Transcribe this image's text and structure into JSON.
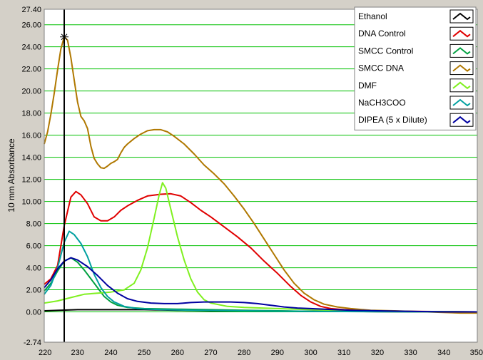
{
  "chart_data": {
    "type": "line",
    "title": "",
    "xlabel": "",
    "ylabel": "10 mm Absorbance",
    "xlim": [
      220,
      350
    ],
    "ylim": [
      -2.74,
      27.4
    ],
    "x_ticks": [
      220,
      230,
      240,
      250,
      260,
      270,
      280,
      290,
      300,
      310,
      320,
      330,
      340,
      350
    ],
    "y_ticks": [
      27.4,
      26.0,
      24.0,
      22.0,
      20.0,
      18.0,
      16.0,
      14.0,
      12.0,
      10.0,
      8.0,
      6.0,
      4.0,
      2.0,
      0.0,
      -2.74
    ],
    "y_tick_labels": [
      "27.40",
      "26.00",
      "24.00",
      "22.00",
      "20.00",
      "18.00",
      "16.00",
      "14.00",
      "12.00",
      "10.00",
      "8.00",
      "6.00",
      "4.00",
      "2.00",
      "0.00",
      "-2.74"
    ],
    "grid": true,
    "grid_color": "#00c000",
    "plot_background": "#ffffff",
    "legend_position": "top-right",
    "cursor": {
      "x": 226,
      "y": 24.9
    },
    "series": [
      {
        "name": "Ethanol",
        "color": "#000000",
        "points": [
          [
            220,
            0.1
          ],
          [
            230,
            0.2
          ],
          [
            240,
            0.2
          ],
          [
            250,
            0.2
          ],
          [
            260,
            0.15
          ],
          [
            270,
            0.1
          ],
          [
            280,
            0.1
          ],
          [
            290,
            0.08
          ],
          [
            300,
            0.05
          ],
          [
            320,
            0.03
          ],
          [
            350,
            0.0
          ]
        ]
      },
      {
        "name": "DNA Control",
        "color": "#e00000",
        "points": [
          [
            220,
            2.5
          ],
          [
            222,
            3.0
          ],
          [
            224,
            4.2
          ],
          [
            226,
            7.8
          ],
          [
            228,
            10.4
          ],
          [
            229.5,
            10.9
          ],
          [
            231,
            10.6
          ],
          [
            233,
            9.8
          ],
          [
            235,
            8.6
          ],
          [
            237,
            8.25
          ],
          [
            239,
            8.25
          ],
          [
            241,
            8.6
          ],
          [
            243,
            9.2
          ],
          [
            245,
            9.6
          ],
          [
            248,
            10.1
          ],
          [
            251,
            10.5
          ],
          [
            255,
            10.65
          ],
          [
            258,
            10.7
          ],
          [
            261,
            10.5
          ],
          [
            264,
            9.9
          ],
          [
            267,
            9.2
          ],
          [
            270,
            8.6
          ],
          [
            274,
            7.7
          ],
          [
            278,
            6.8
          ],
          [
            282,
            5.8
          ],
          [
            286,
            4.6
          ],
          [
            290,
            3.5
          ],
          [
            294,
            2.3
          ],
          [
            297,
            1.5
          ],
          [
            300,
            0.9
          ],
          [
            303,
            0.5
          ],
          [
            306,
            0.3
          ],
          [
            310,
            0.2
          ],
          [
            320,
            0.1
          ],
          [
            330,
            0.05
          ],
          [
            350,
            0.0
          ]
        ]
      },
      {
        "name": "SMCC Control",
        "color": "#00a040",
        "points": [
          [
            220,
            1.9
          ],
          [
            222,
            2.6
          ],
          [
            224,
            3.7
          ],
          [
            226,
            4.6
          ],
          [
            228,
            4.9
          ],
          [
            230,
            4.5
          ],
          [
            232,
            3.8
          ],
          [
            234,
            3.0
          ],
          [
            236,
            2.2
          ],
          [
            238,
            1.4
          ],
          [
            240,
            0.9
          ],
          [
            242,
            0.6
          ],
          [
            245,
            0.4
          ],
          [
            250,
            0.3
          ],
          [
            260,
            0.25
          ],
          [
            270,
            0.2
          ],
          [
            280,
            0.15
          ],
          [
            290,
            0.1
          ],
          [
            300,
            0.05
          ],
          [
            320,
            0.02
          ],
          [
            350,
            0.0
          ]
        ]
      },
      {
        "name": "SMCC DNA",
        "color": "#b07800",
        "points": [
          [
            220,
            15.2
          ],
          [
            221,
            16.3
          ],
          [
            222,
            17.9
          ],
          [
            223,
            19.8
          ],
          [
            224,
            21.9
          ],
          [
            225,
            23.8
          ],
          [
            226,
            24.9
          ],
          [
            227,
            24.6
          ],
          [
            228,
            23.0
          ],
          [
            229,
            21.0
          ],
          [
            230,
            19.0
          ],
          [
            231,
            17.7
          ],
          [
            232,
            17.3
          ],
          [
            233,
            16.6
          ],
          [
            234,
            15.0
          ],
          [
            235,
            13.9
          ],
          [
            236,
            13.4
          ],
          [
            237,
            13.05
          ],
          [
            238,
            13.0
          ],
          [
            239,
            13.2
          ],
          [
            240,
            13.45
          ],
          [
            241,
            13.6
          ],
          [
            242,
            13.8
          ],
          [
            243,
            14.4
          ],
          [
            244,
            14.9
          ],
          [
            245,
            15.2
          ],
          [
            247,
            15.7
          ],
          [
            249,
            16.1
          ],
          [
            251,
            16.4
          ],
          [
            253,
            16.5
          ],
          [
            255,
            16.5
          ],
          [
            257,
            16.3
          ],
          [
            259,
            15.9
          ],
          [
            262,
            15.2
          ],
          [
            265,
            14.3
          ],
          [
            268,
            13.3
          ],
          [
            271,
            12.5
          ],
          [
            274,
            11.6
          ],
          [
            277,
            10.5
          ],
          [
            280,
            9.3
          ],
          [
            283,
            8.0
          ],
          [
            286,
            6.6
          ],
          [
            289,
            5.2
          ],
          [
            292,
            3.8
          ],
          [
            295,
            2.6
          ],
          [
            298,
            1.7
          ],
          [
            301,
            1.1
          ],
          [
            304,
            0.7
          ],
          [
            308,
            0.45
          ],
          [
            312,
            0.3
          ],
          [
            318,
            0.15
          ],
          [
            325,
            0.1
          ],
          [
            335,
            0.0
          ],
          [
            345,
            -0.1
          ],
          [
            350,
            -0.1
          ]
        ]
      },
      {
        "name": "DMF",
        "color": "#80f020",
        "points": [
          [
            220,
            0.8
          ],
          [
            224,
            1.0
          ],
          [
            228,
            1.3
          ],
          [
            232,
            1.6
          ],
          [
            236,
            1.7
          ],
          [
            240,
            1.8
          ],
          [
            244,
            2.0
          ],
          [
            247,
            2.6
          ],
          [
            249,
            3.8
          ],
          [
            251,
            5.8
          ],
          [
            253,
            8.5
          ],
          [
            254.5,
            10.6
          ],
          [
            255.5,
            11.7
          ],
          [
            256.5,
            11.2
          ],
          [
            258,
            9.3
          ],
          [
            260,
            6.8
          ],
          [
            262,
            4.7
          ],
          [
            264,
            3.0
          ],
          [
            266,
            1.8
          ],
          [
            268,
            1.1
          ],
          [
            270,
            0.8
          ],
          [
            275,
            0.5
          ],
          [
            280,
            0.4
          ],
          [
            290,
            0.3
          ],
          [
            300,
            0.2
          ],
          [
            310,
            0.1
          ],
          [
            320,
            0.05
          ],
          [
            350,
            0.0
          ]
        ]
      },
      {
        "name": "NaCH3COO",
        "color": "#00a0a0",
        "points": [
          [
            220,
            1.6
          ],
          [
            222,
            2.4
          ],
          [
            224,
            4.0
          ],
          [
            226,
            6.3
          ],
          [
            227.5,
            7.3
          ],
          [
            229,
            7.0
          ],
          [
            231,
            6.2
          ],
          [
            233,
            5.0
          ],
          [
            235,
            3.4
          ],
          [
            237,
            2.2
          ],
          [
            239,
            1.4
          ],
          [
            241,
            0.9
          ],
          [
            244,
            0.5
          ],
          [
            248,
            0.3
          ],
          [
            255,
            0.2
          ],
          [
            265,
            0.15
          ],
          [
            280,
            0.1
          ],
          [
            300,
            0.05
          ],
          [
            350,
            0.0
          ]
        ]
      },
      {
        "name": "DIPEA (5 x Dilute)",
        "color": "#0000a0",
        "points": [
          [
            220,
            2.2
          ],
          [
            222,
            2.9
          ],
          [
            224,
            3.9
          ],
          [
            226,
            4.6
          ],
          [
            228,
            4.9
          ],
          [
            230,
            4.7
          ],
          [
            233,
            4.1
          ],
          [
            236,
            3.3
          ],
          [
            239,
            2.4
          ],
          [
            242,
            1.7
          ],
          [
            245,
            1.2
          ],
          [
            248,
            0.95
          ],
          [
            252,
            0.8
          ],
          [
            256,
            0.75
          ],
          [
            260,
            0.75
          ],
          [
            264,
            0.85
          ],
          [
            268,
            0.9
          ],
          [
            272,
            0.9
          ],
          [
            276,
            0.9
          ],
          [
            280,
            0.85
          ],
          [
            284,
            0.75
          ],
          [
            288,
            0.6
          ],
          [
            292,
            0.45
          ],
          [
            296,
            0.35
          ],
          [
            300,
            0.3
          ],
          [
            306,
            0.22
          ],
          [
            312,
            0.15
          ],
          [
            320,
            0.1
          ],
          [
            330,
            0.05
          ],
          [
            340,
            0.0
          ],
          [
            350,
            0.0
          ]
        ]
      }
    ]
  }
}
